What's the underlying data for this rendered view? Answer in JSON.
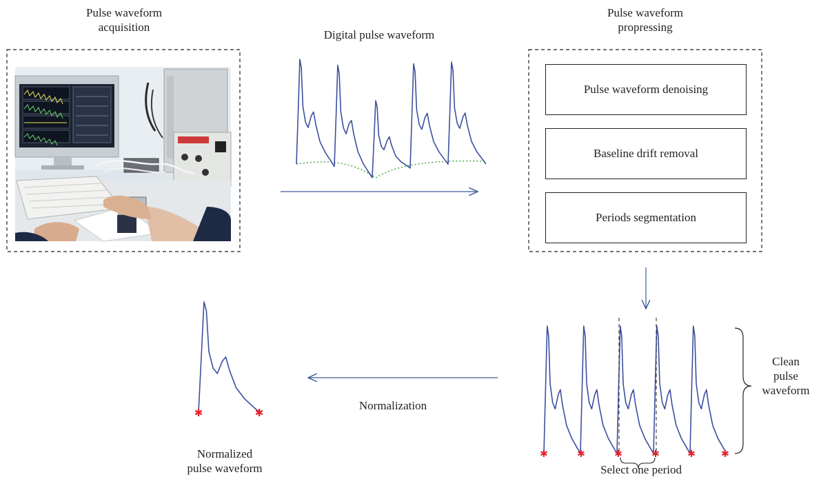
{
  "labels": {
    "acquisition": [
      "Pulse waveform",
      "acquisition"
    ],
    "digital": "Digital pulse waveform",
    "processing": [
      "Pulse waveform",
      "propressing"
    ],
    "clean": [
      "Clean",
      "pulse",
      "waveform"
    ],
    "normalization": "Normalization",
    "normalized": [
      "Normalized",
      "pulse waveform"
    ],
    "select": "Select one period"
  },
  "processing_steps": [
    "Pulse waveform denoising",
    "Baseline drift removal",
    "Periods segmentation"
  ],
  "colors": {
    "waveform": "#3b4fa0",
    "marker": "#e8202a",
    "baseline": "#3aa03a",
    "arrow": "#3b5a9a",
    "frame": "#231f20"
  }
}
